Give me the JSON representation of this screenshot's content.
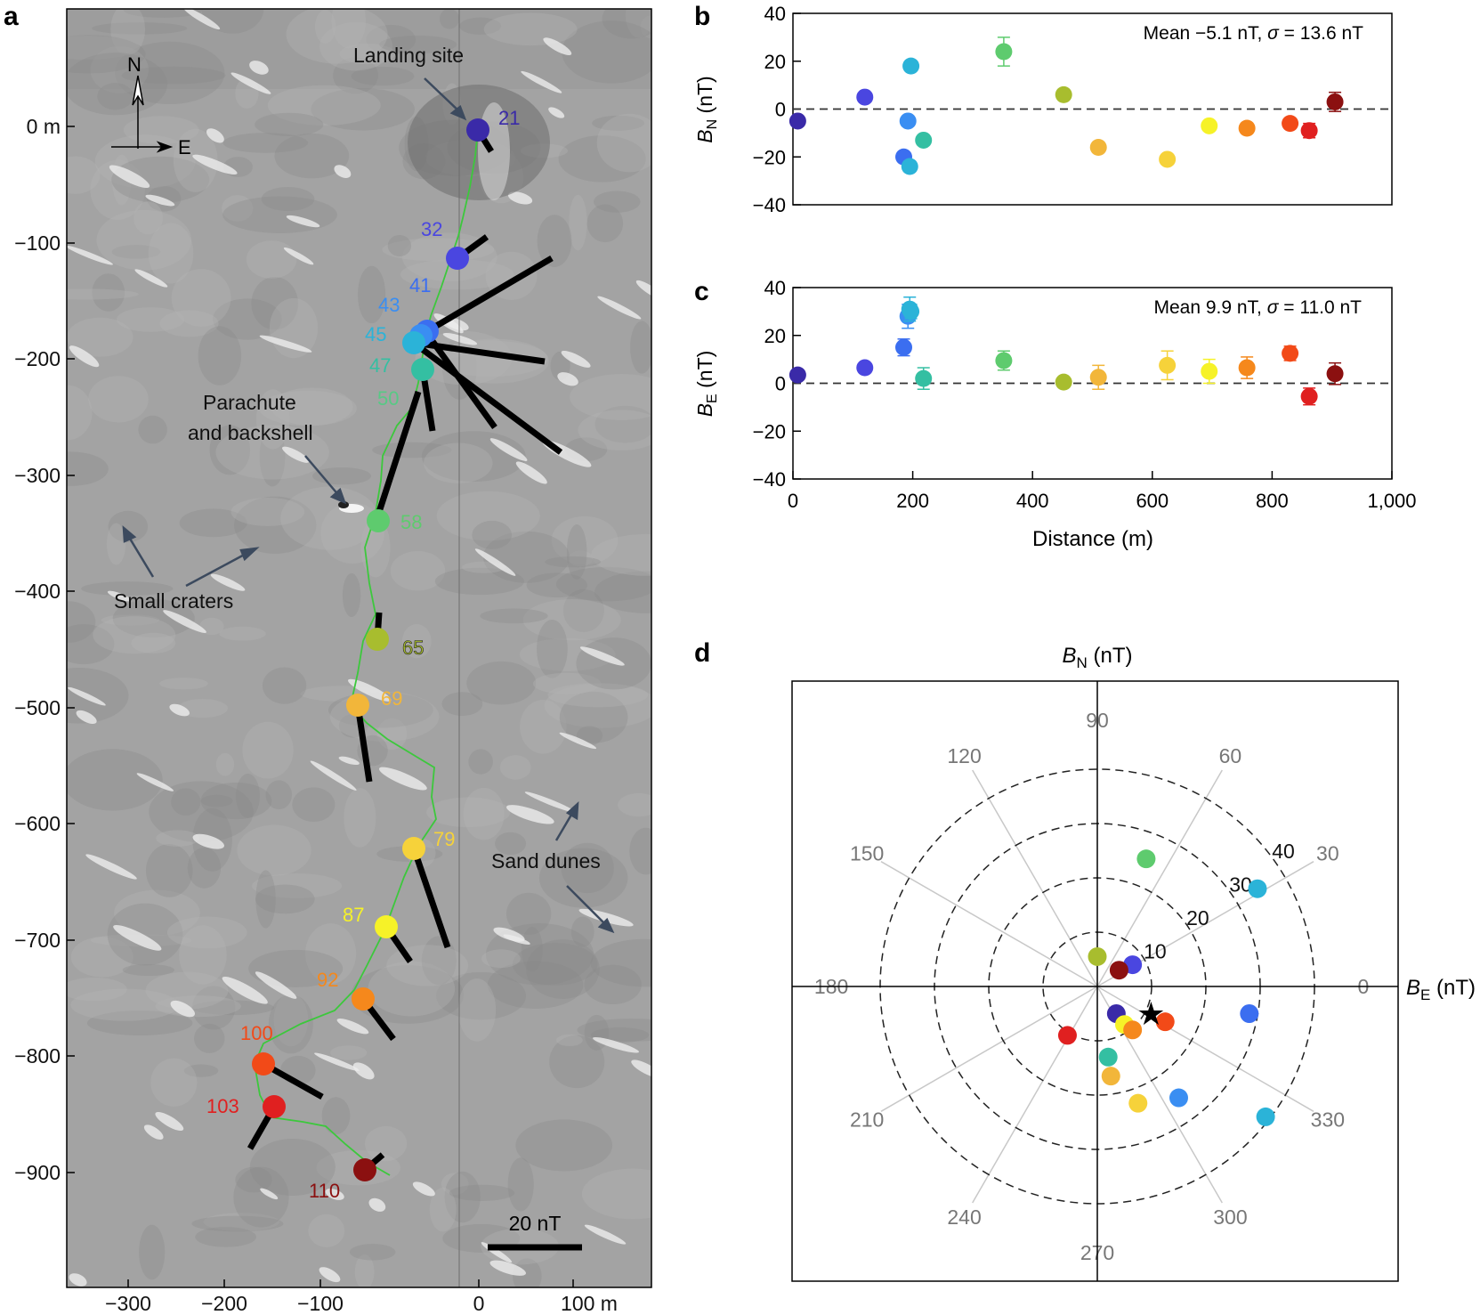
{
  "panel_labels": {
    "a": "a",
    "b": "b",
    "c": "c",
    "d": "d"
  },
  "colors": {
    "s21": "#3a2aa8",
    "s32": "#4a46e0",
    "s41": "#3b6ef0",
    "s43": "#3a8ef2",
    "s45": "#2bb3d8",
    "s47": "#34bfa2",
    "s50": "#58c985",
    "s58": "#5ecb6e",
    "s65": "#a8bd2e",
    "s69": "#f2b63a",
    "s79": "#f6d23a",
    "s87": "#f6f228",
    "s92": "#f5881c",
    "s100": "#f24a18",
    "s103": "#e02020",
    "s110": "#8b1010",
    "track": "#3cc83c",
    "arrow": "#3c4a5e"
  },
  "map": {
    "compass_n": "N",
    "compass_e": "E",
    "y_tick_labels": [
      "0 m",
      "−100",
      "−200",
      "−300",
      "−400",
      "−500",
      "−600",
      "−700",
      "−800",
      "−900"
    ],
    "x_tick_labels": [
      "−300",
      "−200",
      "−100",
      "0",
      "100 m"
    ],
    "annotations": {
      "landing_site": "Landing site",
      "parachute_1": "Parachute",
      "parachute_2": "and backshell",
      "small_craters": "Small craters",
      "sand_dunes": "Sand dunes"
    },
    "scale_bar_label": "20 nT",
    "station_labels": [
      "21",
      "32",
      "41",
      "43",
      "45",
      "47",
      "50",
      "58",
      "65",
      "69",
      "79",
      "87",
      "92",
      "100",
      "103",
      "110"
    ]
  },
  "chart_data": [
    {
      "type": "scatter",
      "panel": "b",
      "ylabel_main": "B",
      "ylabel_sub": "N",
      "ylabel_unit": " (nT)",
      "ylim": [
        -40,
        40
      ],
      "y_ticks": [
        -40,
        -20,
        0,
        20,
        40
      ],
      "y_tick_labels": [
        "−40",
        "−20",
        "0",
        "20",
        "40"
      ],
      "xlim": [
        0,
        1000
      ],
      "stats_prefix": "Mean −5.1 nT, ",
      "stats_sigma": "σ",
      "stats_suffix": " = 13.6 nT",
      "points": [
        {
          "x": 8,
          "y": -5,
          "err": 2,
          "color": "s21"
        },
        {
          "x": 120,
          "y": 5,
          "err": 1.5,
          "color": "s32"
        },
        {
          "x": 185,
          "y": -20,
          "err": 1.5,
          "color": "s41"
        },
        {
          "x": 192,
          "y": -5,
          "err": 2,
          "color": "s43"
        },
        {
          "x": 195,
          "y": -24,
          "err": 1.5,
          "color": "s45"
        },
        {
          "x": 197,
          "y": 18,
          "err": 1.5,
          "color": "s45"
        },
        {
          "x": 218,
          "y": -13,
          "err": 2,
          "color": "s47"
        },
        {
          "x": 352,
          "y": 24,
          "err": 6,
          "color": "s58"
        },
        {
          "x": 452,
          "y": 6,
          "err": 1.5,
          "color": "s65"
        },
        {
          "x": 510,
          "y": -16,
          "err": 2,
          "color": "s69"
        },
        {
          "x": 625,
          "y": -21,
          "err": 2,
          "color": "s79"
        },
        {
          "x": 695,
          "y": -7,
          "err": 2,
          "color": "s87"
        },
        {
          "x": 758,
          "y": -8,
          "err": 2,
          "color": "s92"
        },
        {
          "x": 830,
          "y": -6,
          "err": 2,
          "color": "s100"
        },
        {
          "x": 862,
          "y": -9,
          "err": 3,
          "color": "s103"
        },
        {
          "x": 905,
          "y": 3,
          "err": 4,
          "color": "s110"
        }
      ]
    },
    {
      "type": "scatter",
      "panel": "c",
      "ylabel_main": "B",
      "ylabel_sub": "E",
      "ylabel_unit": " (nT)",
      "xlabel": "Distance (m)",
      "ylim": [
        -40,
        40
      ],
      "y_ticks": [
        -40,
        -20,
        0,
        20,
        40
      ],
      "y_tick_labels": [
        "−40",
        "−20",
        "0",
        "20",
        "40"
      ],
      "xlim": [
        0,
        1000
      ],
      "x_ticks": [
        0,
        200,
        400,
        600,
        800,
        1000
      ],
      "x_tick_labels": [
        "0",
        "200",
        "400",
        "600",
        "800",
        "1,000"
      ],
      "stats_prefix": "Mean 9.9 nT, ",
      "stats_sigma": "σ",
      "stats_suffix": " = 11.0 nT",
      "points": [
        {
          "x": 8,
          "y": 3.5,
          "err": 2,
          "color": "s21"
        },
        {
          "x": 120,
          "y": 6.5,
          "err": 2,
          "color": "s32"
        },
        {
          "x": 185,
          "y": 15,
          "err": 3.5,
          "color": "s41"
        },
        {
          "x": 192,
          "y": 28,
          "err": 5,
          "color": "s43"
        },
        {
          "x": 195,
          "y": 31,
          "err": 5,
          "color": "s45"
        },
        {
          "x": 197,
          "y": 30,
          "err": 3,
          "color": "s45"
        },
        {
          "x": 218,
          "y": 2,
          "err": 4.5,
          "color": "s47"
        },
        {
          "x": 352,
          "y": 9.5,
          "err": 4,
          "color": "s58"
        },
        {
          "x": 452,
          "y": 0.5,
          "err": 1.5,
          "color": "s65"
        },
        {
          "x": 510,
          "y": 2.5,
          "err": 5,
          "color": "s69"
        },
        {
          "x": 625,
          "y": 7.5,
          "err": 6,
          "color": "s79"
        },
        {
          "x": 695,
          "y": 5,
          "err": 5,
          "color": "s87"
        },
        {
          "x": 758,
          "y": 6.5,
          "err": 4.5,
          "color": "s92"
        },
        {
          "x": 830,
          "y": 12.5,
          "err": 3,
          "color": "s100"
        },
        {
          "x": 862,
          "y": -5.5,
          "err": 3.5,
          "color": "s103"
        },
        {
          "x": 905,
          "y": 4,
          "err": 4.5,
          "color": "s110"
        }
      ]
    },
    {
      "type": "scatter",
      "panel": "d",
      "title_main": "B",
      "title_sub": "N",
      "title_unit": " (nT)",
      "xlabel_main": "B",
      "xlabel_sub": "E",
      "xlabel_unit": " (nT)",
      "rings": [
        10,
        20,
        30,
        40
      ],
      "ring_labels": [
        "10",
        "20",
        "30",
        "40"
      ],
      "angle_labels": [
        {
          "angle": 0,
          "text": "0"
        },
        {
          "angle": 30,
          "text": "30"
        },
        {
          "angle": 60,
          "text": "60"
        },
        {
          "angle": 90,
          "text": "90"
        },
        {
          "angle": 120,
          "text": "120"
        },
        {
          "angle": 150,
          "text": "150"
        },
        {
          "angle": 180,
          "text": "180"
        },
        {
          "angle": 210,
          "text": "210"
        },
        {
          "angle": 240,
          "text": "240"
        },
        {
          "angle": 270,
          "text": "270"
        },
        {
          "angle": 300,
          "text": "300"
        },
        {
          "angle": 330,
          "text": "330"
        }
      ],
      "points": [
        {
          "be": 9,
          "bn": 23.5,
          "color": "s58"
        },
        {
          "be": 29.5,
          "bn": 18,
          "color": "s45"
        },
        {
          "be": 0,
          "bn": 5.5,
          "color": "s65"
        },
        {
          "be": 6.5,
          "bn": 4,
          "color": "s32"
        },
        {
          "be": 4,
          "bn": 3,
          "color": "s110"
        },
        {
          "be": 28,
          "bn": -5,
          "color": "s41"
        },
        {
          "be": 3.5,
          "bn": -5,
          "color": "s21"
        },
        {
          "be": 5,
          "bn": -7,
          "color": "s87"
        },
        {
          "be": 6.5,
          "bn": -8,
          "color": "s92"
        },
        {
          "be": 12.5,
          "bn": -6.5,
          "color": "s100"
        },
        {
          "be": -5.5,
          "bn": -9,
          "color": "s103"
        },
        {
          "be": 2,
          "bn": -13,
          "color": "s47"
        },
        {
          "be": 2.5,
          "bn": -16.5,
          "color": "s69"
        },
        {
          "be": 7.5,
          "bn": -21.5,
          "color": "s79"
        },
        {
          "be": 15,
          "bn": -20.5,
          "color": "s43"
        },
        {
          "be": 31,
          "bn": -24,
          "color": "s45"
        }
      ],
      "mean_marker": {
        "be": 9.9,
        "bn": -5.1,
        "symbol": "★"
      }
    }
  ]
}
